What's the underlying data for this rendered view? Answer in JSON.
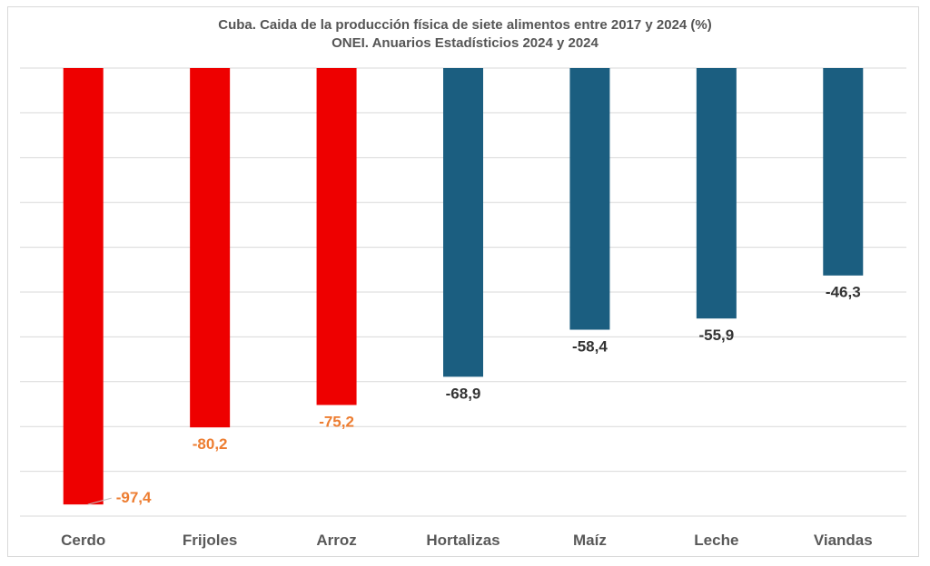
{
  "chart_data": {
    "type": "bar",
    "title": "Cuba. Caida de la producción física de siete alimentos entre 2017 y 2024 (%)",
    "subtitle": "ONEI. Anuarios Estadísticios 2024 y 2024",
    "categories": [
      "Cerdo",
      "Frijoles",
      "Arroz",
      "Hortalizas",
      "Maíz",
      "Leche",
      "Viandas"
    ],
    "values": [
      -97.4,
      -80.2,
      -75.2,
      -68.9,
      -58.4,
      -55.9,
      -46.3
    ],
    "data_labels": [
      "-97,4",
      "-80,2",
      "-75,2",
      "-68,9",
      "-58,4",
      "-55,9",
      "-46,3"
    ],
    "bar_colors": [
      "#EE0000",
      "#EE0000",
      "#EE0000",
      "#1B5E80",
      "#1B5E80",
      "#1B5E80",
      "#1B5E80"
    ],
    "label_colors": [
      "#ED7D31",
      "#ED7D31",
      "#ED7D31",
      "#333333",
      "#333333",
      "#333333",
      "#333333"
    ],
    "ylim": [
      -100,
      0
    ],
    "grid": true,
    "grid_step": 10,
    "xlabel": "",
    "ylabel": "",
    "legend": "none"
  }
}
